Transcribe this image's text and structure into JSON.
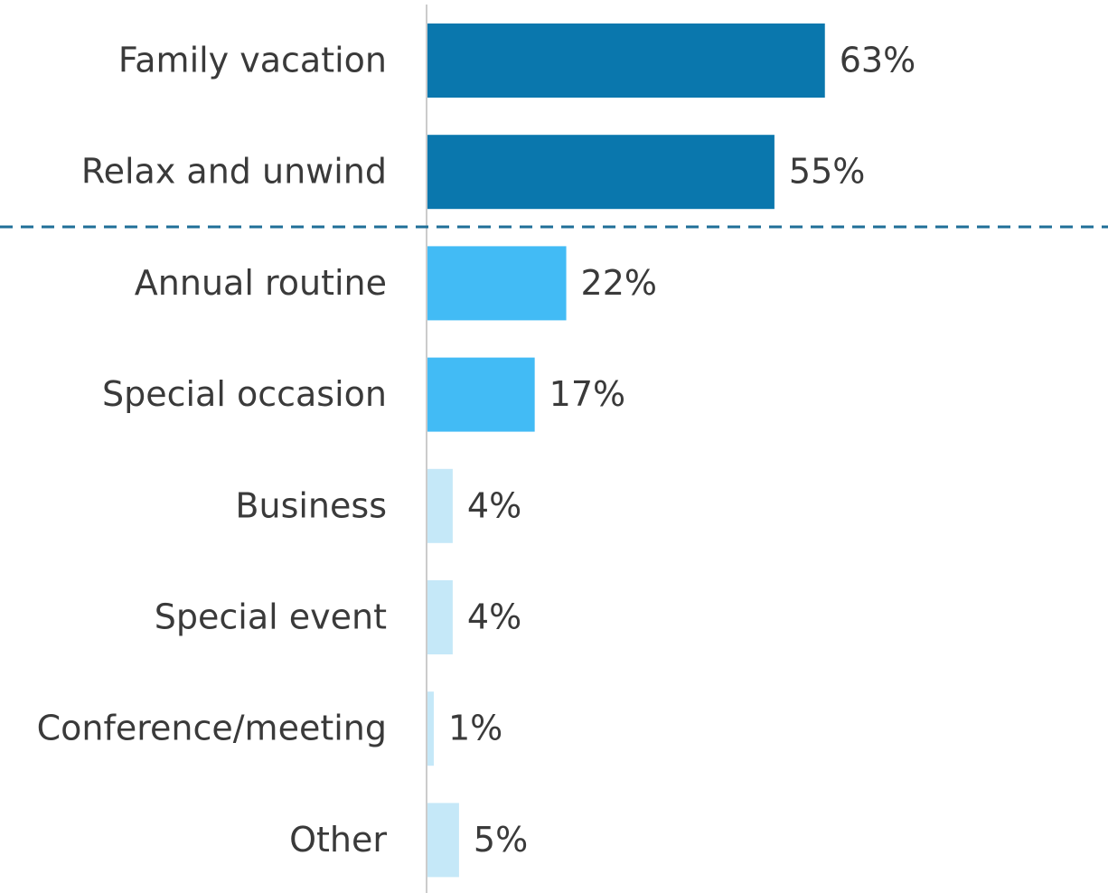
{
  "chart_data": {
    "type": "bar",
    "orientation": "horizontal",
    "categories": [
      "Family vacation",
      "Relax and unwind",
      "Annual routine",
      "Special occasion",
      "Business",
      "Special event",
      "Conference/meeting",
      "Other"
    ],
    "values": [
      63,
      55,
      22,
      17,
      4,
      4,
      1,
      5
    ],
    "value_labels": [
      "63%",
      "55%",
      "22%",
      "17%",
      "4%",
      "4%",
      "1%",
      "5%"
    ],
    "colors": [
      "#0a77ad",
      "#0a77ad",
      "#42bbf5",
      "#42bbf5",
      "#c5e8f8",
      "#c5e8f8",
      "#c5e8f8",
      "#c5e8f8"
    ]
  }
}
